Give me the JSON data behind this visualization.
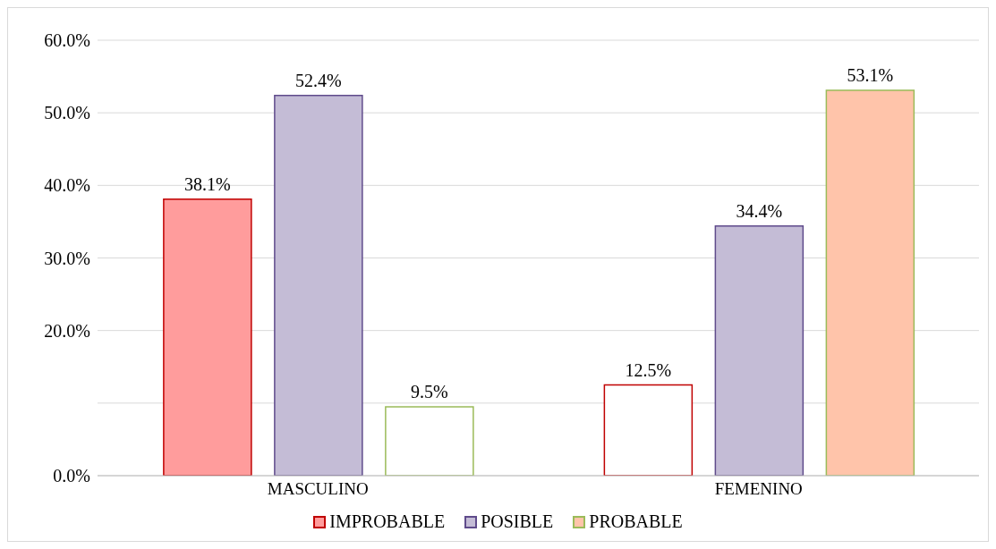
{
  "chart_data": {
    "type": "bar",
    "categories": [
      "MASCULINO",
      "FEMENINO"
    ],
    "series": [
      {
        "name": "IMPROBABLE",
        "color": "#c00000",
        "colors": [
          "#ff9c9c",
          "#ffffff"
        ],
        "values": [
          38.1,
          12.5
        ],
        "value_labels": [
          "38.1%",
          "12.5%"
        ]
      },
      {
        "name": "POSIBLE",
        "color": "#5f4b8b",
        "colors": [
          "#c4bcd6",
          "#c4bcd6"
        ],
        "values": [
          52.4,
          34.4
        ],
        "value_labels": [
          "52.4%",
          "34.4%"
        ]
      },
      {
        "name": "PROBABLE",
        "color": "#9bbb59",
        "colors": [
          "#ffffff",
          "#ffc4aa"
        ],
        "values": [
          9.5,
          53.1
        ],
        "value_labels": [
          "9.5%",
          "53.1%"
        ]
      }
    ],
    "ylim": [
      0,
      60
    ],
    "yticks": [
      {
        "value": 0,
        "label": "0.0%"
      },
      {
        "value": 10,
        "label": null
      },
      {
        "value": 20,
        "label": "20.0%"
      },
      {
        "value": 30,
        "label": "30.0%"
      },
      {
        "value": 40,
        "label": "40.0%"
      },
      {
        "value": 50,
        "label": "50.0%"
      },
      {
        "value": 60,
        "label": "60.0%"
      }
    ],
    "grid": "y",
    "legend": "bottom"
  }
}
